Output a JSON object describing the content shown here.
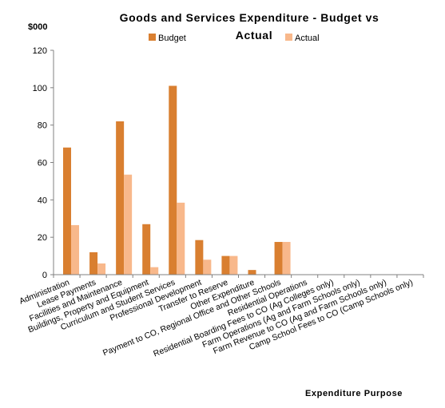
{
  "chart_data": {
    "type": "bar",
    "title": "Goods and Services Expenditure - Budget vs Actual",
    "ylabel": "$000",
    "xlabel": "Expenditure Purpose",
    "ylim": [
      0,
      120
    ],
    "yticks": [
      0,
      20,
      40,
      60,
      80,
      100,
      120
    ],
    "grid": false,
    "legend_position": "top",
    "categories": [
      "Administration",
      "Lease Payments",
      "Facilities and Maintenance",
      "Buildings, Property and Equipment",
      "Curriculum and Student Services",
      "Professional Development",
      "Transfer to Reserve",
      "Other Expenditure",
      "Payment to CO, Regional Office and Other Schools",
      "Residential Operations",
      "Residential Boarding Fees to CO (Ag Colleges only)",
      "Farm Operations (Ag and Farm Schools only)",
      "Farm Revenue to CO (Ag and Farm Schools only)",
      "Camp School Fees to CO (Camp Schools only)"
    ],
    "series": [
      {
        "name": "Budget",
        "color": "#d97f30",
        "values": [
          68,
          12,
          82,
          27,
          101,
          18.5,
          10,
          2.5,
          17.5,
          0,
          0,
          0,
          0,
          0
        ]
      },
      {
        "name": "Actual",
        "color": "#f8b88b",
        "values": [
          26.5,
          6,
          53.5,
          4,
          38.5,
          8,
          10,
          0,
          17.5,
          0,
          0,
          0,
          0,
          0
        ]
      }
    ]
  }
}
